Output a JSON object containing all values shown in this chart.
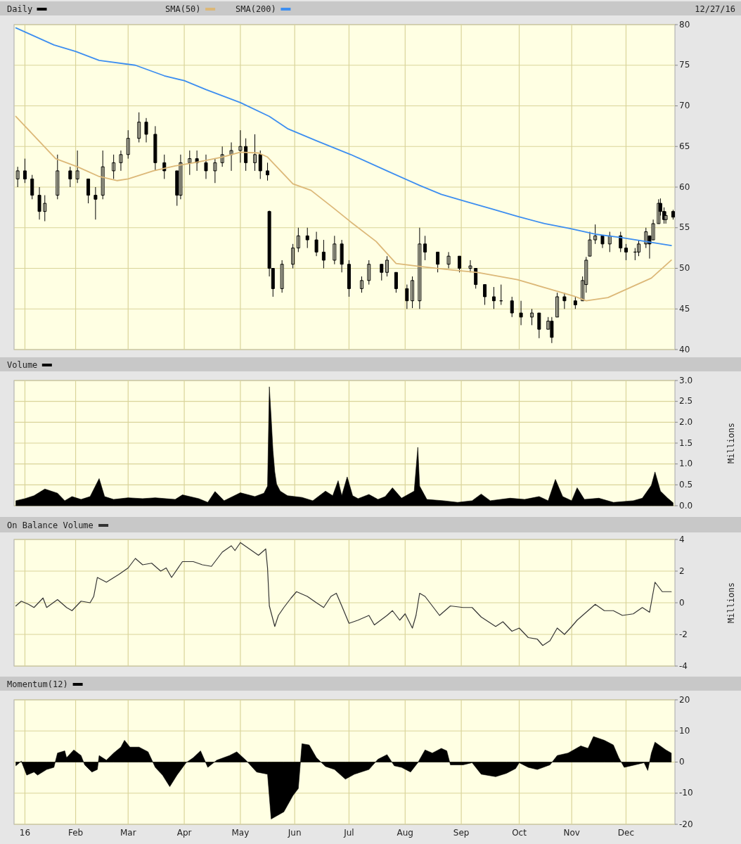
{
  "chart_data": [
    {
      "type": "candlestick",
      "legend": "top",
      "grid": true,
      "tick_labels": "y",
      "annotations": [
        "12/27/16"
      ],
      "xlim": [
        "2015-12-29",
        "2016-12-28"
      ],
      "xticks": [
        {
          "value": "2016-01-04",
          "label": null
        },
        {
          "value": "2016-02-01",
          "label": null
        },
        {
          "value": "2016-03-01",
          "label": null
        },
        {
          "value": "2016-04-01",
          "label": null
        },
        {
          "value": "2016-05-02",
          "label": null
        },
        {
          "value": "2016-06-01",
          "label": null
        },
        {
          "value": "2016-07-01",
          "label": null
        },
        {
          "value": "2016-08-01",
          "label": null
        },
        {
          "value": "2016-09-01",
          "label": null
        },
        {
          "value": "2016-10-03",
          "label": null
        },
        {
          "value": "2016-11-01",
          "label": null
        },
        {
          "value": "2016-12-01",
          "label": null
        }
      ],
      "ylim": [
        40,
        80
      ],
      "yticks": [
        40,
        45,
        50,
        55,
        60,
        65,
        70,
        75,
        80
      ],
      "series": [
        {
          "name": "Daily",
          "type": "candlestick",
          "color": "#000000",
          "x": [
            "2015-12-31",
            "2016-01-04",
            "2016-01-08",
            "2016-01-12",
            "2016-01-15",
            "2016-01-22",
            "2016-01-29",
            "2016-02-02",
            "2016-02-08",
            "2016-02-12",
            "2016-02-16",
            "2016-02-22",
            "2016-02-26",
            "2016-03-01",
            "2016-03-07",
            "2016-03-11",
            "2016-03-16",
            "2016-03-21",
            "2016-03-28",
            "2016-03-30",
            "2016-04-04",
            "2016-04-08",
            "2016-04-13",
            "2016-04-18",
            "2016-04-22",
            "2016-04-27",
            "2016-05-02",
            "2016-05-05",
            "2016-05-10",
            "2016-05-13",
            "2016-05-17",
            "2016-05-18",
            "2016-05-20",
            "2016-05-25",
            "2016-05-31",
            "2016-06-03",
            "2016-06-08",
            "2016-06-13",
            "2016-06-17",
            "2016-06-23",
            "2016-06-27",
            "2016-07-01",
            "2016-07-08",
            "2016-07-12",
            "2016-07-19",
            "2016-07-22",
            "2016-07-27",
            "2016-08-02",
            "2016-08-05",
            "2016-08-09",
            "2016-08-12",
            "2016-08-19",
            "2016-08-25",
            "2016-08-31",
            "2016-09-06",
            "2016-09-09",
            "2016-09-14",
            "2016-09-19",
            "2016-09-23",
            "2016-09-29",
            "2016-10-04",
            "2016-10-10",
            "2016-10-14",
            "2016-10-19",
            "2016-10-21",
            "2016-10-24",
            "2016-10-28",
            "2016-11-03",
            "2016-11-07",
            "2016-11-09",
            "2016-11-11",
            "2016-11-14",
            "2016-11-18",
            "2016-11-22",
            "2016-11-28",
            "2016-12-01",
            "2016-12-06",
            "2016-12-08",
            "2016-12-12",
            "2016-12-14",
            "2016-12-16",
            "2016-12-19",
            "2016-12-20",
            "2016-12-22",
            "2016-12-23",
            "2016-12-27"
          ],
          "ohlc": [
            [
              61,
              62.5,
              60,
              62
            ],
            [
              62,
              63.5,
              60.5,
              61
            ],
            [
              61,
              61.5,
              58.5,
              59
            ],
            [
              59,
              60,
              56,
              57
            ],
            [
              57,
              59,
              55.8,
              58
            ],
            [
              59,
              64,
              58.5,
              62
            ],
            [
              62,
              62.5,
              60,
              61
            ],
            [
              61,
              64.5,
              60.5,
              62
            ],
            [
              61,
              61,
              58,
              59
            ],
            [
              59,
              60,
              56,
              58.5
            ],
            [
              59,
              64.5,
              58.5,
              62.5
            ],
            [
              62,
              64,
              61,
              63
            ],
            [
              63,
              64.5,
              62,
              64
            ],
            [
              64,
              67,
              63.5,
              66
            ],
            [
              66,
              69.2,
              65.5,
              68
            ],
            [
              68,
              68.5,
              65.5,
              66.5
            ],
            [
              66.5,
              67.5,
              62,
              63
            ],
            [
              63,
              64,
              61,
              62
            ],
            [
              62,
              62,
              57.7,
              59
            ],
            [
              59,
              64,
              58.5,
              63
            ],
            [
              63,
              64.5,
              61.5,
              63.5
            ],
            [
              63.5,
              64.5,
              62,
              63
            ],
            [
              63,
              64,
              61,
              62
            ],
            [
              62,
              63.5,
              60.5,
              63
            ],
            [
              63,
              65,
              62.5,
              64
            ],
            [
              64,
              65.5,
              62,
              64.5
            ],
            [
              64.5,
              67,
              63,
              65
            ],
            [
              65,
              66,
              62,
              63
            ],
            [
              63,
              66.5,
              62,
              64
            ],
            [
              64,
              64.5,
              61,
              62
            ],
            [
              62,
              63,
              60.8,
              61.5
            ],
            [
              57,
              57.1,
              49,
              50
            ],
            [
              50,
              50,
              46.5,
              47.5
            ],
            [
              47.5,
              51,
              47,
              50.5
            ],
            [
              50.5,
              53,
              50,
              52.5
            ],
            [
              52.5,
              55,
              52,
              54
            ],
            [
              54,
              55,
              52.5,
              53.5
            ],
            [
              53.5,
              54.5,
              51.5,
              52
            ],
            [
              52,
              53.5,
              50,
              51
            ],
            [
              51,
              54,
              50.5,
              53
            ],
            [
              53,
              53.5,
              49.5,
              50.5
            ],
            [
              50.5,
              51,
              46.5,
              47.5
            ],
            [
              47.5,
              49,
              47,
              48.5
            ],
            [
              48.5,
              51,
              48,
              50.5
            ],
            [
              50.5,
              50.5,
              48.5,
              49.5
            ],
            [
              49.5,
              51.5,
              49,
              51
            ],
            [
              49.5,
              49.5,
              47,
              47.5
            ],
            [
              47.5,
              48,
              45,
              46
            ],
            [
              46,
              49,
              45.1,
              48.5
            ],
            [
              46,
              55,
              45,
              53
            ],
            [
              53,
              54,
              51,
              52
            ],
            [
              52,
              52,
              49.5,
              50.5
            ],
            [
              50.5,
              52,
              50,
              51.5
            ],
            [
              51.5,
              51.5,
              49.5,
              50
            ],
            [
              50,
              51,
              49.5,
              50.3
            ],
            [
              50,
              50,
              47.5,
              48
            ],
            [
              48,
              48,
              45.5,
              46.5
            ],
            [
              46.5,
              47.7,
              45,
              46
            ],
            [
              46,
              48,
              45.5,
              46
            ],
            [
              46,
              46.5,
              44,
              44.5
            ],
            [
              44.5,
              46,
              43,
              44
            ],
            [
              44,
              45,
              43,
              44.5
            ],
            [
              44.5,
              44.5,
              41.4,
              42.5
            ],
            [
              42.5,
              44,
              42.5,
              43.5
            ],
            [
              43.5,
              44,
              40.8,
              41.5
            ],
            [
              44,
              47,
              44,
              46.5
            ],
            [
              46.5,
              47,
              45,
              46
            ],
            [
              46,
              46.5,
              45,
              45.5
            ],
            [
              46,
              49,
              46,
              48.5
            ],
            [
              48,
              51.4,
              47,
              51
            ],
            [
              51.5,
              54.5,
              51.5,
              53.5
            ],
            [
              53.5,
              55.4,
              53,
              54
            ],
            [
              54,
              54,
              52.5,
              53
            ],
            [
              53,
              54.5,
              52,
              54
            ],
            [
              54,
              54.5,
              52,
              52.5
            ],
            [
              52.5,
              53,
              51,
              52
            ],
            [
              52,
              52.5,
              51,
              52
            ],
            [
              52,
              53.5,
              51.5,
              53
            ],
            [
              53,
              55,
              52.5,
              54.5
            ],
            [
              54,
              54,
              51.2,
              53
            ],
            [
              53.5,
              56,
              53.5,
              55.5
            ],
            [
              55.5,
              58.5,
              55.5,
              58
            ],
            [
              58,
              58.6,
              56.5,
              57
            ],
            [
              57,
              57.5,
              55.5,
              56
            ],
            [
              56,
              57,
              55.5,
              56.5
            ],
            [
              57,
              57.2,
              56,
              56.3
            ]
          ]
        },
        {
          "name": "SMA(50)",
          "type": "line",
          "color": "#dcb878",
          "x": [
            "2015-12-30",
            "2016-01-21",
            "2016-02-02",
            "2016-02-14",
            "2016-02-24",
            "2016-03-01",
            "2016-03-15",
            "2016-03-27",
            "2016-04-09",
            "2016-04-22",
            "2016-05-02",
            "2016-05-12",
            "2016-05-17",
            "2016-05-31",
            "2016-06-10",
            "2016-06-22",
            "2016-07-02",
            "2016-07-16",
            "2016-07-27",
            "2016-08-10",
            "2016-08-27",
            "2016-09-10",
            "2016-10-02",
            "2016-10-19",
            "2016-11-02",
            "2016-11-09",
            "2016-11-21",
            "2016-12-05",
            "2016-12-15",
            "2016-12-26"
          ],
          "values": [
            68.7,
            63.5,
            62.5,
            61.3,
            60.8,
            61,
            62,
            62.6,
            63.1,
            63.7,
            64.3,
            64.2,
            63.7,
            60.4,
            59.6,
            57.5,
            55.7,
            53.3,
            50.6,
            50.2,
            49.8,
            49.5,
            48.6,
            47.5,
            46.6,
            46,
            46.4,
            47.8,
            48.8,
            51
          ]
        },
        {
          "name": "SMA(200)",
          "type": "line",
          "color": "#3d8ef0",
          "x": [
            "2015-12-30",
            "2016-01-20",
            "2016-02-01",
            "2016-02-14",
            "2016-03-05",
            "2016-03-21",
            "2016-04-01",
            "2016-04-13",
            "2016-05-02",
            "2016-05-18",
            "2016-05-28",
            "2016-06-13",
            "2016-07-02",
            "2016-07-23",
            "2016-08-09",
            "2016-08-21",
            "2016-09-04",
            "2016-09-18",
            "2016-10-02",
            "2016-10-17",
            "2016-10-31",
            "2016-11-14",
            "2016-11-28",
            "2016-12-12",
            "2016-12-26"
          ],
          "values": [
            79.6,
            77.5,
            76.7,
            75.6,
            75,
            73.7,
            73.1,
            72,
            70.4,
            68.7,
            67.2,
            65.7,
            64,
            61.9,
            60.2,
            59.1,
            58.2,
            57.3,
            56.4,
            55.5,
            54.9,
            54.2,
            53.8,
            53.3,
            52.8
          ]
        }
      ]
    },
    {
      "type": "area",
      "legend": "top",
      "grid": true,
      "tick_labels": "y",
      "ylabel": "Millions",
      "xlim": [
        "2015-12-29",
        "2016-12-28"
      ],
      "xticks": [
        {
          "value": "2016-01-04",
          "label": null
        },
        {
          "value": "2016-02-01",
          "label": null
        },
        {
          "value": "2016-03-01",
          "label": null
        },
        {
          "value": "2016-04-01",
          "label": null
        },
        {
          "value": "2016-05-02",
          "label": null
        },
        {
          "value": "2016-06-01",
          "label": null
        },
        {
          "value": "2016-07-01",
          "label": null
        },
        {
          "value": "2016-08-01",
          "label": null
        },
        {
          "value": "2016-09-01",
          "label": null
        },
        {
          "value": "2016-10-03",
          "label": null
        },
        {
          "value": "2016-11-01",
          "label": null
        },
        {
          "value": "2016-12-01",
          "label": null
        }
      ],
      "ylim": [
        0,
        3
      ],
      "yticks": [
        {
          "value": 0,
          "label": "0.0"
        },
        {
          "value": 0.5,
          "label": "0.5"
        },
        {
          "value": 1,
          "label": "1.0"
        },
        {
          "value": 1.5,
          "label": "1.5"
        },
        {
          "value": 2,
          "label": "2.0"
        },
        {
          "value": 2.5,
          "label": "2.5"
        },
        {
          "value": 3,
          "label": "3.0"
        }
      ],
      "series": [
        {
          "name": "Volume",
          "color": "#000000",
          "x": [
            "2015-12-30",
            "2016-01-04",
            "2016-01-09",
            "2016-01-15",
            "2016-01-22",
            "2016-01-26",
            "2016-01-30",
            "2016-02-04",
            "2016-02-09",
            "2016-02-14",
            "2016-02-17",
            "2016-02-22",
            "2016-03-01",
            "2016-03-09",
            "2016-03-16",
            "2016-03-27",
            "2016-03-31",
            "2016-04-09",
            "2016-04-14",
            "2016-04-18",
            "2016-04-23",
            "2016-05-02",
            "2016-05-10",
            "2016-05-15",
            "2016-05-17",
            "2016-05-18",
            "2016-05-19",
            "2016-05-20",
            "2016-05-21",
            "2016-05-22",
            "2016-05-24",
            "2016-05-28",
            "2016-06-05",
            "2016-06-11",
            "2016-06-18",
            "2016-06-22",
            "2016-06-25",
            "2016-06-27",
            "2016-06-30",
            "2016-07-03",
            "2016-07-06",
            "2016-07-12",
            "2016-07-17",
            "2016-07-21",
            "2016-07-25",
            "2016-07-30",
            "2016-08-06",
            "2016-08-08",
            "2016-08-09",
            "2016-08-13",
            "2016-08-22",
            "2016-08-30",
            "2016-09-07",
            "2016-09-12",
            "2016-09-17",
            "2016-09-28",
            "2016-10-06",
            "2016-10-14",
            "2016-10-19",
            "2016-10-23",
            "2016-10-27",
            "2016-11-01",
            "2016-11-04",
            "2016-11-08",
            "2016-11-16",
            "2016-11-24",
            "2016-12-05",
            "2016-12-10",
            "2016-12-15",
            "2016-12-17",
            "2016-12-20",
            "2016-12-24",
            "2016-12-27"
          ],
          "values": [
            0.12,
            0.17,
            0.24,
            0.4,
            0.3,
            0.12,
            0.22,
            0.15,
            0.22,
            0.65,
            0.22,
            0.15,
            0.19,
            0.17,
            0.19,
            0.15,
            0.26,
            0.17,
            0.08,
            0.34,
            0.12,
            0.31,
            0.22,
            0.3,
            0.47,
            2.85,
            2.11,
            1.32,
            0.81,
            0.52,
            0.35,
            0.24,
            0.2,
            0.12,
            0.35,
            0.24,
            0.6,
            0.24,
            0.69,
            0.24,
            0.17,
            0.27,
            0.15,
            0.22,
            0.43,
            0.18,
            0.35,
            1.4,
            0.47,
            0.15,
            0.12,
            0.08,
            0.12,
            0.28,
            0.12,
            0.18,
            0.15,
            0.22,
            0.12,
            0.63,
            0.22,
            0.12,
            0.43,
            0.15,
            0.18,
            0.08,
            0.12,
            0.18,
            0.49,
            0.81,
            0.35,
            0.18,
            0.07
          ]
        }
      ]
    },
    {
      "type": "line",
      "legend": "top",
      "grid": true,
      "tick_labels": "y",
      "ylabel": "Millions",
      "xlim": [
        "2015-12-29",
        "2016-12-28"
      ],
      "xticks": [
        {
          "value": "2016-01-04",
          "label": null
        },
        {
          "value": "2016-02-01",
          "label": null
        },
        {
          "value": "2016-03-01",
          "label": null
        },
        {
          "value": "2016-04-01",
          "label": null
        },
        {
          "value": "2016-05-02",
          "label": null
        },
        {
          "value": "2016-06-01",
          "label": null
        },
        {
          "value": "2016-07-01",
          "label": null
        },
        {
          "value": "2016-08-01",
          "label": null
        },
        {
          "value": "2016-09-01",
          "label": null
        },
        {
          "value": "2016-10-03",
          "label": null
        },
        {
          "value": "2016-11-01",
          "label": null
        },
        {
          "value": "2016-12-01",
          "label": null
        }
      ],
      "ylim": [
        -4,
        4
      ],
      "yticks": [
        -4,
        -2,
        0,
        2,
        4
      ],
      "series": [
        {
          "name": "On Balance Volume",
          "color": "#333333",
          "x": [
            "2015-12-30",
            "2016-01-02",
            "2016-01-06",
            "2016-01-09",
            "2016-01-14",
            "2016-01-16",
            "2016-01-22",
            "2016-01-27",
            "2016-01-30",
            "2016-02-04",
            "2016-02-09",
            "2016-02-11",
            "2016-02-13",
            "2016-02-18",
            "2016-02-25",
            "2016-03-01",
            "2016-03-05",
            "2016-03-09",
            "2016-03-14",
            "2016-03-19",
            "2016-03-22",
            "2016-03-25",
            "2016-03-31",
            "2016-04-06",
            "2016-04-11",
            "2016-04-16",
            "2016-04-22",
            "2016-04-27",
            "2016-04-29",
            "2016-05-02",
            "2016-05-07",
            "2016-05-12",
            "2016-05-16",
            "2016-05-17",
            "2016-05-18",
            "2016-05-21",
            "2016-05-23",
            "2016-05-26",
            "2016-05-30",
            "2016-06-02",
            "2016-06-08",
            "2016-06-13",
            "2016-06-17",
            "2016-06-21",
            "2016-06-24",
            "2016-06-27",
            "2016-07-01",
            "2016-07-06",
            "2016-07-12",
            "2016-07-15",
            "2016-07-22",
            "2016-07-25",
            "2016-07-29",
            "2016-08-01",
            "2016-08-05",
            "2016-08-07",
            "2016-08-09",
            "2016-08-12",
            "2016-08-20",
            "2016-08-26",
            "2016-09-02",
            "2016-09-07",
            "2016-09-12",
            "2016-09-20",
            "2016-09-24",
            "2016-09-29",
            "2016-10-03",
            "2016-10-08",
            "2016-10-13",
            "2016-10-16",
            "2016-10-20",
            "2016-10-24",
            "2016-10-28",
            "2016-11-01",
            "2016-11-04",
            "2016-11-08",
            "2016-11-14",
            "2016-11-19",
            "2016-11-24",
            "2016-11-29",
            "2016-12-05",
            "2016-12-10",
            "2016-12-14",
            "2016-12-17",
            "2016-12-21",
            "2016-12-24",
            "2016-12-26"
          ],
          "values": [
            -0.2,
            0.1,
            -0.1,
            -0.3,
            0.3,
            -0.3,
            0.2,
            -0.3,
            -0.5,
            0.1,
            0,
            0.4,
            1.6,
            1.3,
            1.8,
            2.2,
            2.8,
            2.4,
            2.5,
            2,
            2.2,
            1.6,
            2.6,
            2.6,
            2.4,
            2.3,
            3.2,
            3.6,
            3.3,
            3.8,
            3.4,
            3,
            3.4,
            2.2,
            -0.2,
            -1.5,
            -0.8,
            -0.3,
            0.3,
            0.7,
            0.4,
            0,
            -0.3,
            0.4,
            0.6,
            -0.2,
            -1.3,
            -1.1,
            -0.8,
            -1.4,
            -0.8,
            -0.5,
            -1.1,
            -0.7,
            -1.6,
            -0.8,
            0.6,
            0.4,
            -0.8,
            -0.2,
            -0.3,
            -0.3,
            -0.9,
            -1.5,
            -1.2,
            -1.8,
            -1.6,
            -2.2,
            -2.3,
            -2.7,
            -2.4,
            -1.6,
            -2,
            -1.5,
            -1.1,
            -0.7,
            -0.1,
            -0.5,
            -0.5,
            -0.8,
            -0.7,
            -0.3,
            -0.6,
            1.3,
            0.7,
            0.7,
            0.7
          ]
        }
      ]
    },
    {
      "type": "area",
      "legend": "top",
      "grid": true,
      "xlim": [
        "2015-12-29",
        "2016-12-28"
      ],
      "xticks": [
        {
          "value": "2016-01-04",
          "label": "16"
        },
        {
          "value": "2016-02-01",
          "label": "Feb"
        },
        {
          "value": "2016-03-01",
          "label": "Mar"
        },
        {
          "value": "2016-04-01",
          "label": "Apr"
        },
        {
          "value": "2016-05-02",
          "label": "May"
        },
        {
          "value": "2016-06-01",
          "label": "Jun"
        },
        {
          "value": "2016-07-01",
          "label": "Jul"
        },
        {
          "value": "2016-08-01",
          "label": "Aug"
        },
        {
          "value": "2016-09-01",
          "label": "Sep"
        },
        {
          "value": "2016-10-03",
          "label": "Oct"
        },
        {
          "value": "2016-11-01",
          "label": "Nov"
        },
        {
          "value": "2016-12-01",
          "label": "Dec"
        }
      ],
      "ylim": [
        -20,
        20
      ],
      "yticks": [
        -20,
        -10,
        0,
        10,
        20
      ],
      "series": [
        {
          "name": "Momentum(12)",
          "color": "#000000",
          "x": [
            "2015-12-30",
            "2016-01-02",
            "2016-01-05",
            "2016-01-09",
            "2016-01-11",
            "2016-01-16",
            "2016-01-20",
            "2016-01-22",
            "2016-01-26",
            "2016-01-27",
            "2016-01-31",
            "2016-02-04",
            "2016-02-06",
            "2016-02-10",
            "2016-02-13",
            "2016-02-14",
            "2016-02-18",
            "2016-02-22",
            "2016-02-26",
            "2016-02-28",
            "2016-03-02",
            "2016-03-07",
            "2016-03-12",
            "2016-03-16",
            "2016-03-20",
            "2016-03-24",
            "2016-03-28",
            "2016-04-02",
            "2016-04-06",
            "2016-04-10",
            "2016-04-14",
            "2016-04-19",
            "2016-04-26",
            "2016-04-30",
            "2016-05-05",
            "2016-05-11",
            "2016-05-17",
            "2016-05-19",
            "2016-05-26",
            "2016-05-31",
            "2016-06-03",
            "2016-06-05",
            "2016-06-09",
            "2016-06-13",
            "2016-06-18",
            "2016-06-23",
            "2016-06-29",
            "2016-07-04",
            "2016-07-12",
            "2016-07-17",
            "2016-07-22",
            "2016-07-26",
            "2016-07-30",
            "2016-08-04",
            "2016-08-08",
            "2016-08-12",
            "2016-08-16",
            "2016-08-21",
            "2016-08-24",
            "2016-08-26",
            "2016-09-02",
            "2016-09-07",
            "2016-09-12",
            "2016-09-20",
            "2016-09-26",
            "2016-10-01",
            "2016-10-03",
            "2016-10-08",
            "2016-10-13",
            "2016-10-20",
            "2016-10-24",
            "2016-10-30",
            "2016-11-06",
            "2016-11-10",
            "2016-11-13",
            "2016-11-19",
            "2016-11-24",
            "2016-11-27",
            "2016-11-30",
            "2016-12-06",
            "2016-12-11",
            "2016-12-13",
            "2016-12-15",
            "2016-12-17",
            "2016-12-23",
            "2016-12-26"
          ],
          "values": [
            -1.2,
            0.3,
            -4.2,
            -3.2,
            -4.2,
            -2.4,
            -1.7,
            2.9,
            3.6,
            1.4,
            3.9,
            2.1,
            -0.9,
            -3.2,
            -2.4,
            2.1,
            0.6,
            2.9,
            4.8,
            7,
            4.8,
            4.8,
            3.3,
            -1.7,
            -4.2,
            -7.9,
            -4.2,
            -0.2,
            1.4,
            3.6,
            -1.7,
            0.6,
            2.1,
            3.3,
            0.6,
            -3.2,
            -3.9,
            -18.3,
            -16,
            -10.8,
            -8.5,
            5.9,
            5.5,
            1.4,
            -1.4,
            -2.4,
            -5.5,
            -3.9,
            -2.4,
            0.9,
            2.4,
            -1.2,
            -1.7,
            -3.2,
            -0.2,
            3.9,
            2.9,
            4.4,
            3.6,
            -0.9,
            -0.9,
            -0.2,
            -3.9,
            -4.7,
            -3.6,
            -2.1,
            -0.2,
            -1.7,
            -2.4,
            -0.9,
            2.1,
            2.9,
            5.2,
            4.4,
            8.2,
            7,
            5.5,
            1.4,
            -1.7,
            -0.9,
            -0.2,
            -2.7,
            2.9,
            6.4,
            3.9,
            2.9
          ]
        }
      ]
    }
  ]
}
